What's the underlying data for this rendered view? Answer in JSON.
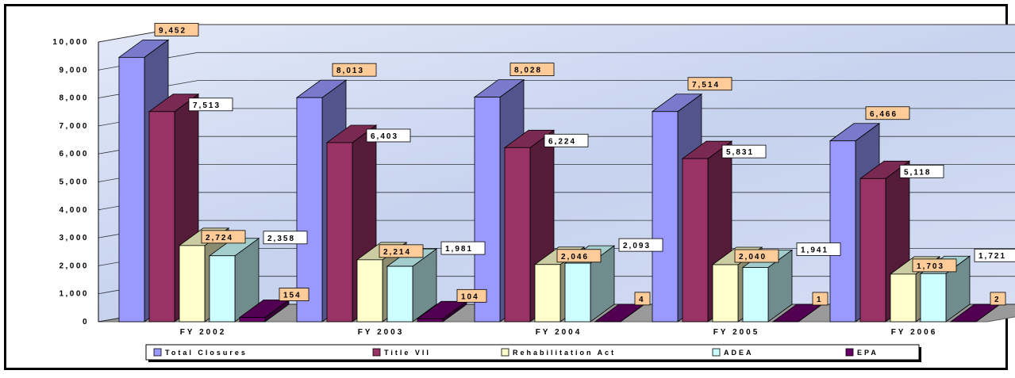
{
  "chart_data": {
    "type": "bar",
    "style": "3d-clustered-column",
    "categories": [
      "FY 2002",
      "FY 2003",
      "FY 2004",
      "FY 2005",
      "FY 2006"
    ],
    "series": [
      {
        "name": "Total Closures",
        "values": [
          9452,
          8013,
          8028,
          7514,
          6466
        ],
        "labels": [
          "9,452",
          "8,013",
          "8,028",
          "7,514",
          "6,466"
        ],
        "color": "#9999ff",
        "label_bg": "#ffcc99"
      },
      {
        "name": "Title VII",
        "values": [
          7513,
          6403,
          6224,
          5831,
          5118
        ],
        "labels": [
          "7,513",
          "6,403",
          "6,224",
          "5,831",
          "5,118"
        ],
        "color": "#993366",
        "label_bg": "#ffffff"
      },
      {
        "name": "Rehabilitation Act",
        "values": [
          2724,
          2214,
          2046,
          2040,
          1703
        ],
        "labels": [
          "2,724",
          "2,214",
          "2,046",
          "2,040",
          "1,703"
        ],
        "color": "#ffffcc",
        "label_bg": "#ffcc99"
      },
      {
        "name": "ADEA",
        "values": [
          2358,
          1981,
          2093,
          1941,
          1721
        ],
        "labels": [
          "2,358",
          "1,981",
          "2,093",
          "1,941",
          "1,721"
        ],
        "color": "#ccffff",
        "label_bg": "#ffffff"
      },
      {
        "name": "EPA",
        "values": [
          154,
          104,
          4,
          1,
          2
        ],
        "labels": [
          "154",
          "104",
          "4",
          "1",
          "2"
        ],
        "color": "#660066",
        "label_bg": "#ffcc99"
      }
    ],
    "yticks": [
      "0",
      "1,000",
      "2,000",
      "3,000",
      "4,000",
      "5,000",
      "6,000",
      "7,000",
      "8,000",
      "9,000",
      "10,000"
    ],
    "ylim": [
      0,
      10000
    ],
    "grid": true,
    "legend": "bottom",
    "background_color": "#c8d4f0"
  }
}
